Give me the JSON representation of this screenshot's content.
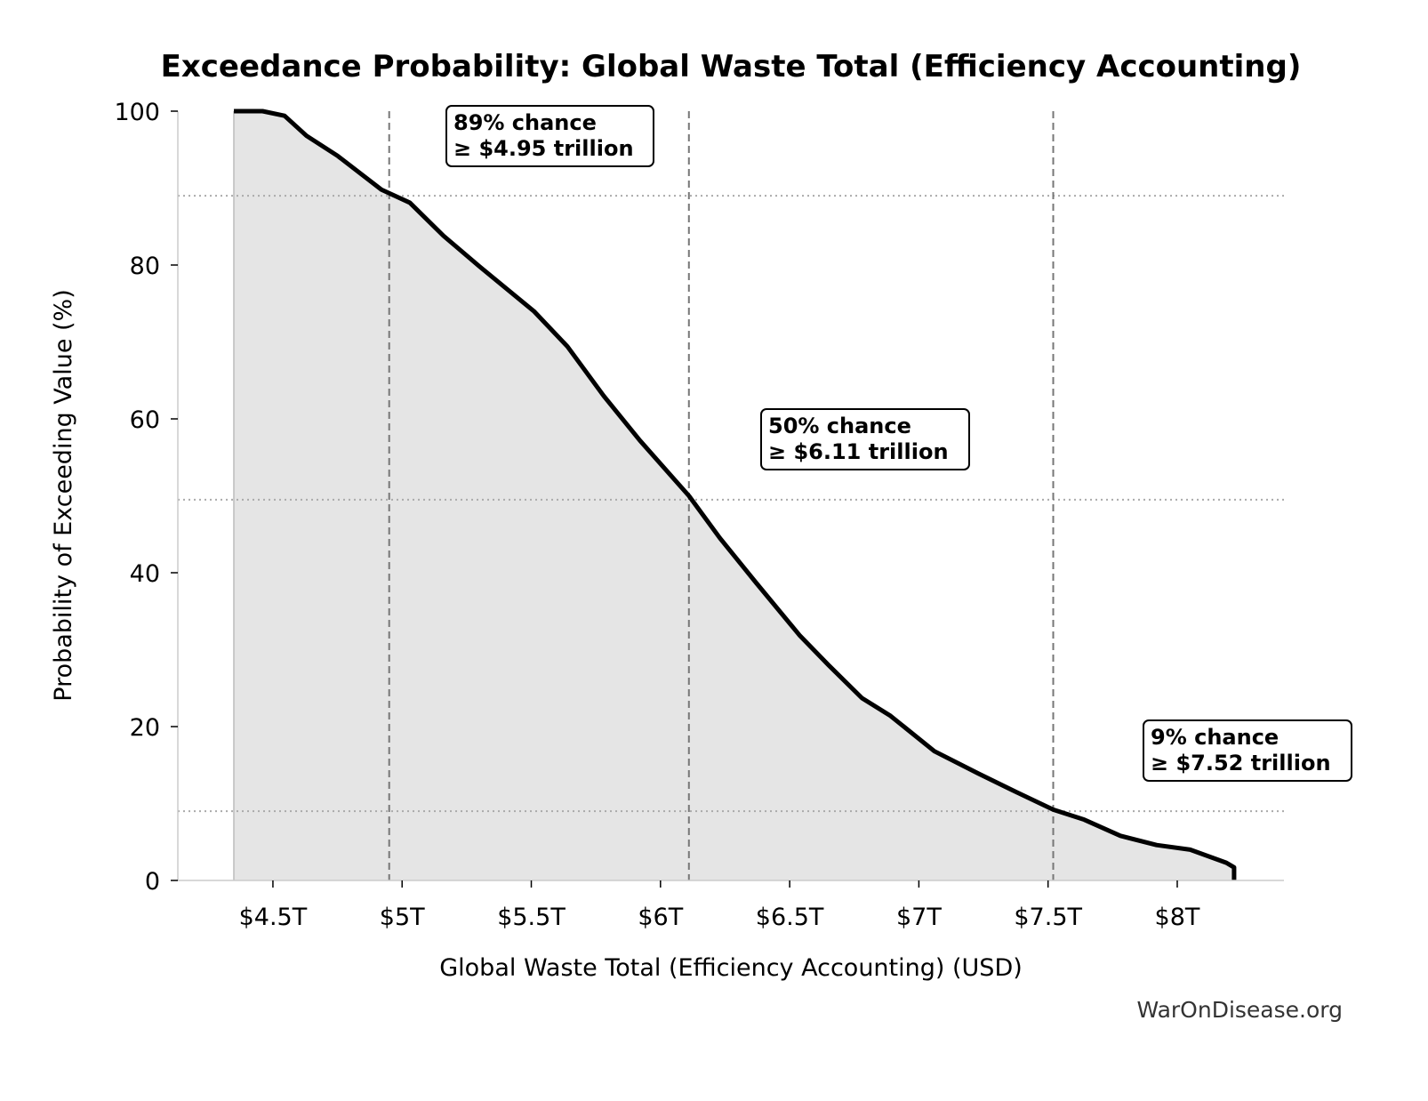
{
  "chart_data": {
    "type": "area",
    "title": "Exceedance Probability: Global Waste Total (Efficiency Accounting)",
    "xlabel": "Global Waste Total (Efficiency Accounting) (USD)",
    "ylabel": "Probability of Exceeding Value (%)",
    "xlim": [
      4.132,
      8.413
    ],
    "ylim": [
      0,
      100
    ],
    "x_unit": "USD trillions",
    "xticks": [
      4.5,
      5,
      5.5,
      6,
      6.5,
      7,
      7.5,
      8
    ],
    "xtick_labels": [
      "$4.5T",
      "$5T",
      "$5.5T",
      "$6T",
      "$6.5T",
      "$7T",
      "$7.5T",
      "$8T"
    ],
    "yticks": [
      0,
      20,
      40,
      60,
      80,
      100
    ],
    "ytick_labels": [
      "0",
      "20",
      "40",
      "60",
      "80",
      "100"
    ],
    "grid": false,
    "fill_color": "#e5e5e5",
    "line_color": "#000000",
    "x": [
      4.349,
      4.46,
      4.545,
      4.63,
      4.75,
      4.92,
      5.03,
      5.16,
      5.3,
      5.51,
      5.64,
      5.78,
      5.92,
      6.11,
      6.23,
      6.37,
      6.54,
      6.65,
      6.78,
      6.89,
      7.06,
      7.23,
      7.37,
      7.52,
      7.64,
      7.78,
      7.92,
      8.05,
      8.19,
      8.22,
      8.22
    ],
    "y": [
      100,
      100,
      99.4,
      96.8,
      94.2,
      89.8,
      88.1,
      83.8,
      79.8,
      74,
      69.4,
      63,
      57.2,
      50,
      44.5,
      38.7,
      31.8,
      28,
      23.7,
      21.4,
      16.8,
      13.9,
      11.6,
      9.2,
      7.9,
      5.8,
      4.6,
      4,
      2.3,
      1.7,
      0
    ],
    "reference_lines": [
      {
        "x": 4.95,
        "y": 89,
        "label_line1": "89% chance",
        "label_line2": "≥ $4.95 trillion"
      },
      {
        "x": 6.11,
        "y": 49.5,
        "label_line1": "50% chance",
        "label_line2": "≥ $6.11 trillion"
      },
      {
        "x": 7.52,
        "y": 9,
        "label_line1": "9% chance",
        "label_line2": "≥ $7.52 trillion"
      }
    ]
  },
  "watermark": "WarOnDisease.org"
}
